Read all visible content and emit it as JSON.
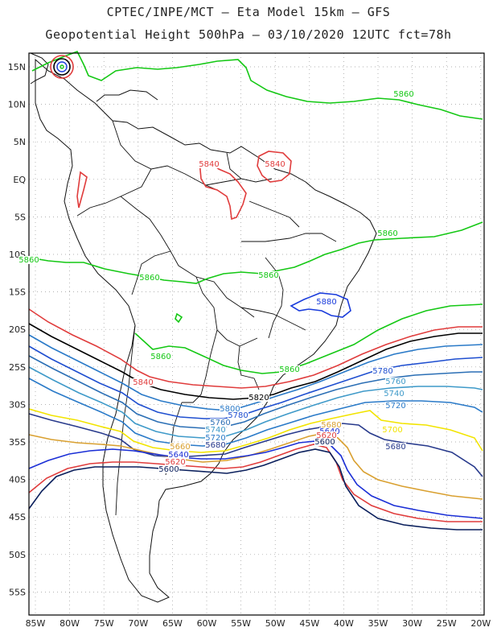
{
  "header": {
    "title_line1": "CPTEC/INPE/MCT –  Eta Model 15km – GFS",
    "title_line2": "Geopotential Height 500hPa – 03/10/2020 12UTC fct=78h"
  },
  "axes": {
    "lat_labels": [
      "15N",
      "10N",
      "5N",
      "EQ",
      "5S",
      "10S",
      "15S",
      "20S",
      "25S",
      "30S",
      "35S",
      "40S",
      "45S",
      "50S",
      "55S"
    ],
    "lon_labels": [
      "85W",
      "80W",
      "75W",
      "70W",
      "65W",
      "60W",
      "55W",
      "50W",
      "45W",
      "40W",
      "35W",
      "30W",
      "25W",
      "20W"
    ]
  },
  "colors": {
    "c5600": "#0a1f5c",
    "c5620": "#e03c3c",
    "c5640": "#1b2fd6",
    "c5660": "#d9a030",
    "c5680": "#283a8c",
    "c5700": "#f2e400",
    "c5720": "#2a7ac8",
    "c5740": "#3f9ac9",
    "c5760": "#2b6fb5",
    "c5780": "#1f4fd0",
    "c5820": "#000000",
    "c5840": "#e03c3c",
    "c5860": "#14c814",
    "c5880": "#1a3cdc"
  },
  "contour_labels": [
    {
      "text": "5860",
      "color": "#14c814"
    },
    {
      "text": "5860",
      "color": "#14c814"
    },
    {
      "text": "5860",
      "color": "#14c814"
    },
    {
      "text": "5860",
      "color": "#14c814"
    },
    {
      "text": "5860",
      "color": "#14c814"
    },
    {
      "text": "5860",
      "color": "#14c814"
    },
    {
      "text": "5860",
      "color": "#14c814"
    },
    {
      "text": "5840",
      "color": "#e03c3c"
    },
    {
      "text": "5840",
      "color": "#e03c3c"
    },
    {
      "text": "5840",
      "color": "#e03c3c"
    },
    {
      "text": "5880",
      "color": "#1a3cdc"
    },
    {
      "text": "5820",
      "color": "#000000"
    },
    {
      "text": "5800",
      "color": "#2a7ac8"
    },
    {
      "text": "5780",
      "color": "#1f4fd0"
    },
    {
      "text": "5760",
      "color": "#2b6fb5"
    },
    {
      "text": "5740",
      "color": "#3f9ac9"
    },
    {
      "text": "5720",
      "color": "#2a7ac8"
    },
    {
      "text": "5780",
      "color": "#1f4fd0"
    },
    {
      "text": "5760",
      "color": "#3f9ac9"
    },
    {
      "text": "5740",
      "color": "#3f9ac9"
    },
    {
      "text": "5720",
      "color": "#2a7ac8"
    },
    {
      "text": "5700",
      "color": "#f2e400"
    },
    {
      "text": "5680",
      "color": "#283a8c"
    },
    {
      "text": "5680",
      "color": "#d9a030"
    },
    {
      "text": "5640",
      "color": "#1b2fd6"
    },
    {
      "text": "5620",
      "color": "#e03c3c"
    },
    {
      "text": "5600",
      "color": "#0a1f5c"
    },
    {
      "text": "5660",
      "color": "#d9a030"
    },
    {
      "text": "5680",
      "color": "#283a8c"
    },
    {
      "text": "5640",
      "color": "#1b2fd6"
    },
    {
      "text": "5620",
      "color": "#e03c3c"
    },
    {
      "text": "5600",
      "color": "#0a1f5c"
    }
  ]
}
